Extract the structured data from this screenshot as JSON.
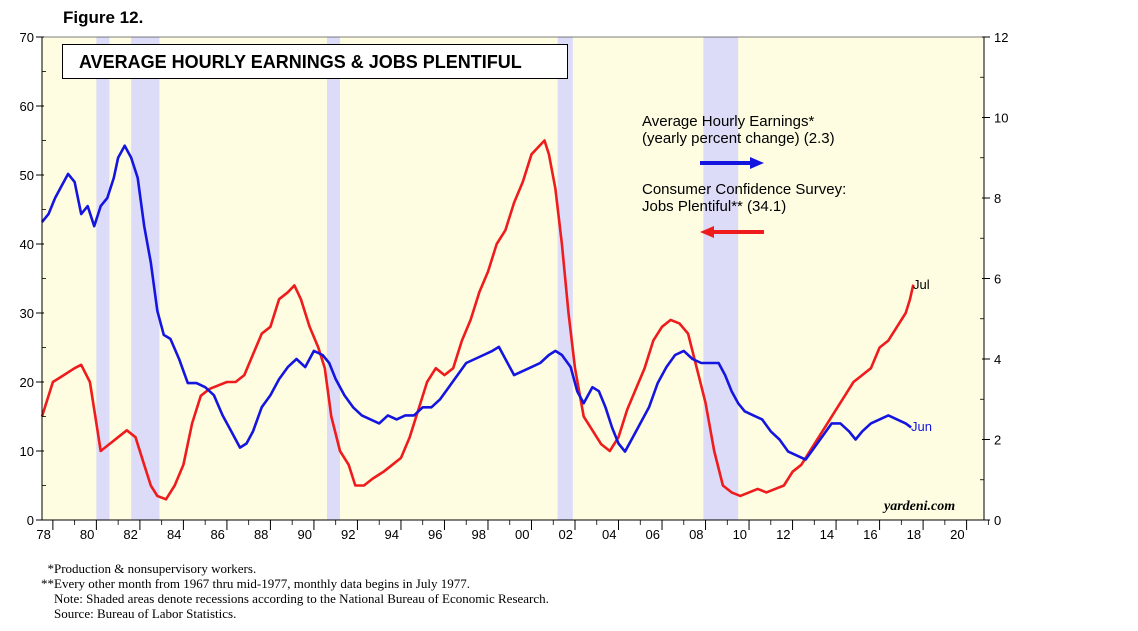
{
  "figure_label": "Figure 12.",
  "watermark": "yardeni.com",
  "legend": {
    "ahe_line1": "Average Hourly Earnings*",
    "ahe_line2": "(yearly percent change) (2.3)",
    "jobs_line1": "Consumer Confidence Survey:",
    "jobs_line2": "Jobs Plentiful** (34.1)",
    "ahe_color": "#1515e0",
    "jobs_color": "#ee1c1c"
  },
  "footnotes": [
    {
      "mark": "*",
      "text": "Production & nonsupervisory workers."
    },
    {
      "mark": "**",
      "text": "Every other month from 1967 thru mid-1977, monthly data begins in July 1977."
    },
    {
      "mark": "",
      "text": "Note: Shaded areas denote recessions according to the National Bureau of Economic Research."
    },
    {
      "mark": "",
      "text": "Source: Bureau of Labor Statistics."
    }
  ],
  "chart_data": {
    "type": "line",
    "title": "AVERAGE HOURLY EARNINGS & JOBS PLENTIFUL",
    "x_range": [
      1977.5,
      2020.8
    ],
    "x_ticks": [
      1978,
      1980,
      1982,
      1984,
      1986,
      1988,
      1990,
      1992,
      1994,
      1996,
      1998,
      2000,
      2002,
      2004,
      2006,
      2008,
      2010,
      2012,
      2014,
      2016,
      2018,
      2020
    ],
    "x_tick_labels": [
      "78",
      "80",
      "82",
      "84",
      "86",
      "88",
      "90",
      "92",
      "94",
      "96",
      "98",
      "00",
      "02",
      "04",
      "06",
      "08",
      "10",
      "12",
      "14",
      "16",
      "18",
      "20"
    ],
    "y_left": {
      "range": [
        0,
        70
      ],
      "ticks": [
        0,
        10,
        20,
        30,
        40,
        50,
        60,
        70
      ],
      "series": "Jobs Plentiful"
    },
    "y_right": {
      "range": [
        0,
        12
      ],
      "ticks": [
        0,
        2,
        4,
        6,
        8,
        10,
        12
      ],
      "series": "Average Hourly Earnings"
    },
    "recessions": [
      [
        1980.0,
        1980.6
      ],
      [
        1981.6,
        1982.9
      ],
      [
        1990.6,
        1991.2
      ],
      [
        2001.2,
        2001.9
      ],
      [
        2007.9,
        2009.5
      ]
    ],
    "background_color": "#fefde2",
    "recession_color": "#dcdcf8",
    "series": [
      {
        "name": "Jobs Plentiful",
        "axis": "left",
        "color": "#ee1c1c",
        "end_label": "Jul",
        "points": [
          [
            1977.5,
            15
          ],
          [
            1978.0,
            20
          ],
          [
            1978.5,
            21
          ],
          [
            1979.0,
            22
          ],
          [
            1979.3,
            22.5
          ],
          [
            1979.7,
            20
          ],
          [
            1980.0,
            14
          ],
          [
            1980.2,
            10
          ],
          [
            1980.6,
            11
          ],
          [
            1981.0,
            12
          ],
          [
            1981.4,
            13
          ],
          [
            1981.8,
            12
          ],
          [
            1982.2,
            8
          ],
          [
            1982.5,
            5
          ],
          [
            1982.8,
            3.5
          ],
          [
            1983.2,
            3
          ],
          [
            1983.6,
            5
          ],
          [
            1984.0,
            8
          ],
          [
            1984.4,
            14
          ],
          [
            1984.8,
            18
          ],
          [
            1985.2,
            19
          ],
          [
            1985.6,
            19.5
          ],
          [
            1986.0,
            20
          ],
          [
            1986.4,
            20
          ],
          [
            1986.8,
            21
          ],
          [
            1987.2,
            24
          ],
          [
            1987.6,
            27
          ],
          [
            1988.0,
            28
          ],
          [
            1988.4,
            32
          ],
          [
            1988.8,
            33
          ],
          [
            1989.1,
            34
          ],
          [
            1989.4,
            32
          ],
          [
            1989.8,
            28
          ],
          [
            1990.2,
            25
          ],
          [
            1990.5,
            22
          ],
          [
            1990.8,
            15
          ],
          [
            1991.2,
            10
          ],
          [
            1991.6,
            8
          ],
          [
            1991.9,
            5
          ],
          [
            1992.3,
            5
          ],
          [
            1992.7,
            6
          ],
          [
            1993.2,
            7
          ],
          [
            1993.6,
            8
          ],
          [
            1994.0,
            9
          ],
          [
            1994.4,
            12
          ],
          [
            1994.8,
            16
          ],
          [
            1995.2,
            20
          ],
          [
            1995.6,
            22
          ],
          [
            1996.0,
            21
          ],
          [
            1996.4,
            22
          ],
          [
            1996.8,
            26
          ],
          [
            1997.2,
            29
          ],
          [
            1997.6,
            33
          ],
          [
            1998.0,
            36
          ],
          [
            1998.4,
            40
          ],
          [
            1998.8,
            42
          ],
          [
            1999.2,
            46
          ],
          [
            1999.6,
            49
          ],
          [
            2000.0,
            53
          ],
          [
            2000.3,
            54
          ],
          [
            2000.6,
            55
          ],
          [
            2000.8,
            53
          ],
          [
            2001.1,
            48
          ],
          [
            2001.4,
            40
          ],
          [
            2001.7,
            30
          ],
          [
            2002.0,
            22
          ],
          [
            2002.4,
            15
          ],
          [
            2002.8,
            13
          ],
          [
            2003.2,
            11
          ],
          [
            2003.6,
            10
          ],
          [
            2004.0,
            12
          ],
          [
            2004.4,
            16
          ],
          [
            2004.8,
            19
          ],
          [
            2005.2,
            22
          ],
          [
            2005.6,
            26
          ],
          [
            2006.0,
            28
          ],
          [
            2006.4,
            29
          ],
          [
            2006.8,
            28.5
          ],
          [
            2007.2,
            27
          ],
          [
            2007.6,
            22
          ],
          [
            2008.0,
            17
          ],
          [
            2008.4,
            10
          ],
          [
            2008.8,
            5
          ],
          [
            2009.2,
            4
          ],
          [
            2009.6,
            3.5
          ],
          [
            2010.0,
            4
          ],
          [
            2010.4,
            4.5
          ],
          [
            2010.8,
            4
          ],
          [
            2011.2,
            4.5
          ],
          [
            2011.6,
            5
          ],
          [
            2012.0,
            7
          ],
          [
            2012.4,
            8
          ],
          [
            2012.8,
            10
          ],
          [
            2013.2,
            12
          ],
          [
            2013.6,
            14
          ],
          [
            2014.0,
            16
          ],
          [
            2014.4,
            18
          ],
          [
            2014.8,
            20
          ],
          [
            2015.2,
            21
          ],
          [
            2015.6,
            22
          ],
          [
            2016.0,
            25
          ],
          [
            2016.4,
            26
          ],
          [
            2016.8,
            28
          ],
          [
            2017.2,
            30
          ],
          [
            2017.4,
            32
          ],
          [
            2017.55,
            34.1
          ]
        ]
      },
      {
        "name": "Average Hourly Earnings",
        "axis": "right",
        "color": "#1515e0",
        "end_label": "Jun",
        "points": [
          [
            1977.5,
            7.4
          ],
          [
            1977.8,
            7.6
          ],
          [
            1978.1,
            8.0
          ],
          [
            1978.4,
            8.3
          ],
          [
            1978.7,
            8.6
          ],
          [
            1979.0,
            8.4
          ],
          [
            1979.3,
            7.6
          ],
          [
            1979.6,
            7.8
          ],
          [
            1979.9,
            7.3
          ],
          [
            1980.2,
            7.8
          ],
          [
            1980.5,
            8.0
          ],
          [
            1980.8,
            8.5
          ],
          [
            1981.0,
            9.0
          ],
          [
            1981.3,
            9.3
          ],
          [
            1981.6,
            9.0
          ],
          [
            1981.9,
            8.5
          ],
          [
            1982.2,
            7.3
          ],
          [
            1982.5,
            6.4
          ],
          [
            1982.8,
            5.2
          ],
          [
            1983.1,
            4.6
          ],
          [
            1983.4,
            4.5
          ],
          [
            1983.8,
            4.0
          ],
          [
            1984.2,
            3.4
          ],
          [
            1984.6,
            3.4
          ],
          [
            1985.0,
            3.3
          ],
          [
            1985.4,
            3.1
          ],
          [
            1985.8,
            2.6
          ],
          [
            1986.2,
            2.2
          ],
          [
            1986.6,
            1.8
          ],
          [
            1986.9,
            1.9
          ],
          [
            1987.2,
            2.2
          ],
          [
            1987.6,
            2.8
          ],
          [
            1988.0,
            3.1
          ],
          [
            1988.4,
            3.5
          ],
          [
            1988.8,
            3.8
          ],
          [
            1989.2,
            4.0
          ],
          [
            1989.6,
            3.8
          ],
          [
            1990.0,
            4.2
          ],
          [
            1990.4,
            4.1
          ],
          [
            1990.7,
            3.9
          ],
          [
            1991.0,
            3.5
          ],
          [
            1991.4,
            3.1
          ],
          [
            1991.8,
            2.8
          ],
          [
            1992.2,
            2.6
          ],
          [
            1992.6,
            2.5
          ],
          [
            1993.0,
            2.4
          ],
          [
            1993.4,
            2.6
          ],
          [
            1993.8,
            2.5
          ],
          [
            1994.2,
            2.6
          ],
          [
            1994.6,
            2.6
          ],
          [
            1995.0,
            2.8
          ],
          [
            1995.4,
            2.8
          ],
          [
            1995.8,
            3.0
          ],
          [
            1996.2,
            3.3
          ],
          [
            1996.6,
            3.6
          ],
          [
            1997.0,
            3.9
          ],
          [
            1997.4,
            4.0
          ],
          [
            1997.8,
            4.1
          ],
          [
            1998.2,
            4.2
          ],
          [
            1998.5,
            4.3
          ],
          [
            1998.8,
            4.0
          ],
          [
            1999.2,
            3.6
          ],
          [
            1999.6,
            3.7
          ],
          [
            2000.0,
            3.8
          ],
          [
            2000.4,
            3.9
          ],
          [
            2000.8,
            4.1
          ],
          [
            2001.1,
            4.2
          ],
          [
            2001.4,
            4.1
          ],
          [
            2001.8,
            3.8
          ],
          [
            2002.1,
            3.2
          ],
          [
            2002.4,
            2.9
          ],
          [
            2002.8,
            3.3
          ],
          [
            2003.1,
            3.2
          ],
          [
            2003.4,
            2.8
          ],
          [
            2003.7,
            2.3
          ],
          [
            2004.0,
            1.9
          ],
          [
            2004.3,
            1.7
          ],
          [
            2004.6,
            2.0
          ],
          [
            2005.0,
            2.4
          ],
          [
            2005.4,
            2.8
          ],
          [
            2005.8,
            3.4
          ],
          [
            2006.2,
            3.8
          ],
          [
            2006.6,
            4.1
          ],
          [
            2007.0,
            4.2
          ],
          [
            2007.4,
            4.0
          ],
          [
            2007.8,
            3.9
          ],
          [
            2008.2,
            3.9
          ],
          [
            2008.6,
            3.9
          ],
          [
            2008.9,
            3.6
          ],
          [
            2009.2,
            3.2
          ],
          [
            2009.5,
            2.9
          ],
          [
            2009.8,
            2.7
          ],
          [
            2010.2,
            2.6
          ],
          [
            2010.6,
            2.5
          ],
          [
            2011.0,
            2.2
          ],
          [
            2011.4,
            2.0
          ],
          [
            2011.8,
            1.7
          ],
          [
            2012.2,
            1.6
          ],
          [
            2012.6,
            1.5
          ],
          [
            2013.0,
            1.8
          ],
          [
            2013.4,
            2.1
          ],
          [
            2013.8,
            2.4
          ],
          [
            2014.2,
            2.4
          ],
          [
            2014.6,
            2.2
          ],
          [
            2014.9,
            2.0
          ],
          [
            2015.2,
            2.2
          ],
          [
            2015.6,
            2.4
          ],
          [
            2016.0,
            2.5
          ],
          [
            2016.4,
            2.6
          ],
          [
            2016.8,
            2.5
          ],
          [
            2017.2,
            2.4
          ],
          [
            2017.45,
            2.3
          ]
        ]
      }
    ]
  }
}
